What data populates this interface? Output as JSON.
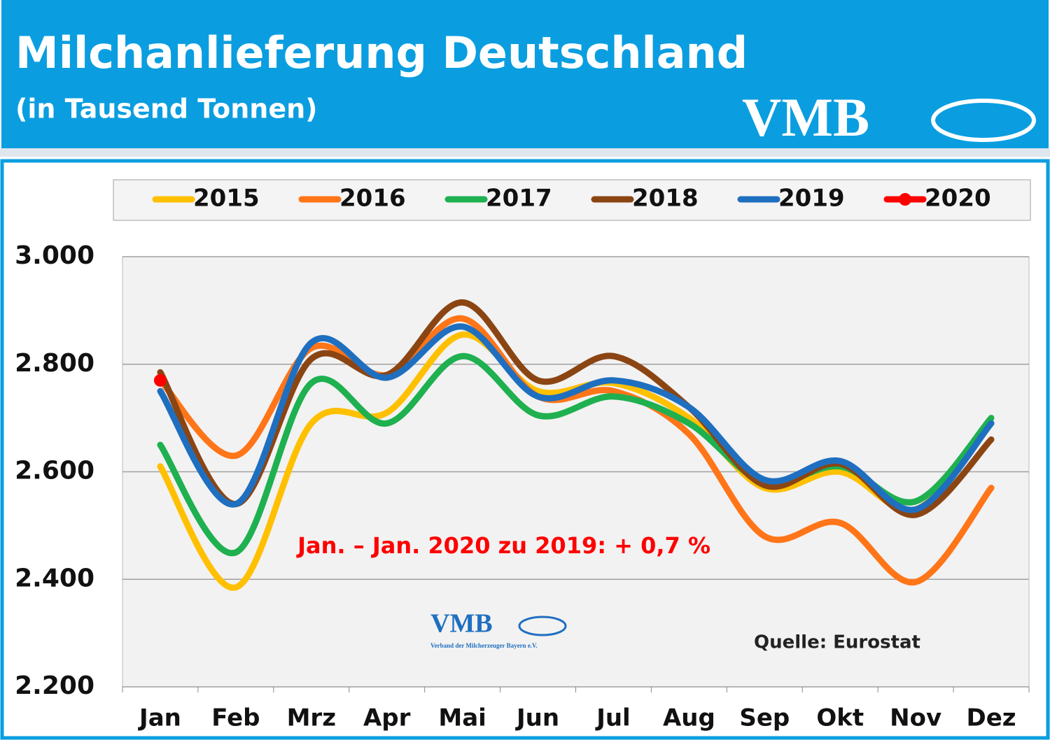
{
  "chart_data": {
    "type": "line",
    "title": "Milchanlieferung Deutschland",
    "subtitle": "(in Tausend Tonnen)",
    "logo": "VMB",
    "logo_small": "VMB",
    "logo_caption": "Verband der Milcherzeuger Bayern e.V.",
    "annotation": "Jan. –  Jan. 2020 zu 2019: + 0,7 %",
    "source": "Quelle: Eurostat",
    "categories": [
      "Jan",
      "Feb",
      "Mrz",
      "Apr",
      "Mai",
      "Jun",
      "Jul",
      "Aug",
      "Sep",
      "Okt",
      "Nov",
      "Dez"
    ],
    "series": [
      {
        "name": "2015",
        "color": "#ffc000",
        "values": [
          2610,
          2385,
          2690,
          2710,
          2855,
          2750,
          2765,
          2700,
          2570,
          2600,
          2530,
          2690
        ]
      },
      {
        "name": "2016",
        "color": "#ff7518",
        "values": [
          2770,
          2630,
          2830,
          2780,
          2885,
          2740,
          2750,
          2670,
          2480,
          2505,
          2395,
          2570
        ]
      },
      {
        "name": "2017",
        "color": "#1fb050",
        "values": [
          2650,
          2450,
          2765,
          2690,
          2815,
          2705,
          2740,
          2690,
          2580,
          2610,
          2545,
          2700
        ]
      },
      {
        "name": "2018",
        "color": "#8b4513",
        "values": [
          2785,
          2540,
          2810,
          2780,
          2915,
          2770,
          2815,
          2720,
          2575,
          2615,
          2520,
          2660
        ]
      },
      {
        "name": "2019",
        "color": "#1f6fc0",
        "values": [
          2750,
          2540,
          2840,
          2775,
          2870,
          2740,
          2770,
          2720,
          2585,
          2620,
          2530,
          2690
        ]
      },
      {
        "name": "2020",
        "color": "#ff0000",
        "values": [
          2770,
          null,
          null,
          null,
          null,
          null,
          null,
          null,
          null,
          null,
          null,
          null
        ]
      }
    ],
    "ylim": [
      2200,
      3000
    ],
    "yticks": [
      {
        "value": 2200,
        "label": "2.200"
      },
      {
        "value": 2400,
        "label": "2.400"
      },
      {
        "value": 2600,
        "label": "2.600"
      },
      {
        "value": 2800,
        "label": "2.800"
      },
      {
        "value": 3000,
        "label": "3.000"
      }
    ],
    "grid": true
  }
}
